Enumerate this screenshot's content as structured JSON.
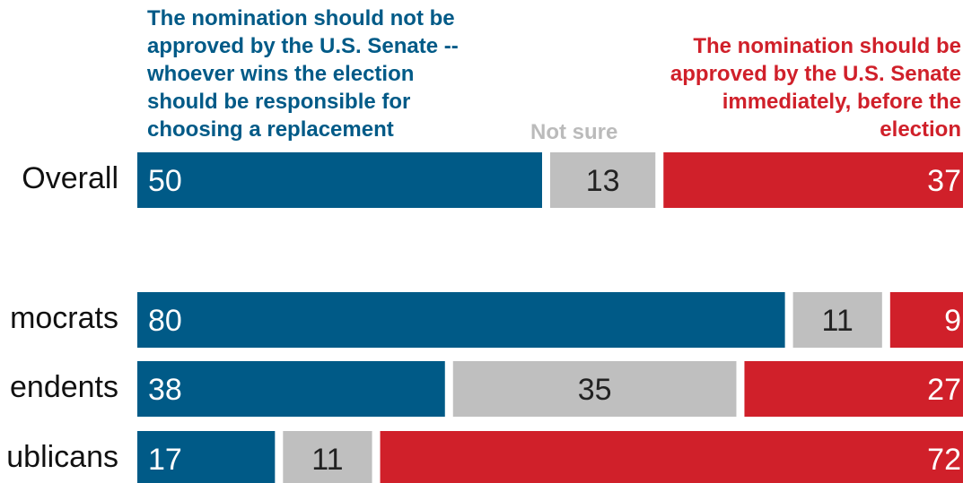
{
  "legend": {
    "no": "The nomination should not be\napproved by the U.S. Senate --\nwhoever wins the election\nshould be responsible for\nchoosing a replacement",
    "not_sure": "Not sure",
    "yes": "The nomination should be\napproved by the U.S. Senate\nimmediately, before the\nelection"
  },
  "colors": {
    "no": "#005a87",
    "not_sure": "#bfbfbf",
    "yes": "#d0202a"
  },
  "chart_data": {
    "type": "bar",
    "orientation": "horizontal",
    "stacked": true,
    "categories": [
      "Overall",
      "Democrats",
      "Independents",
      "Republicans"
    ],
    "visible_category_labels": [
      "Overall",
      "mocrats",
      "endents",
      "ublicans"
    ],
    "series": [
      {
        "name": "The nomination should not be approved by the U.S. Senate -- whoever wins the election should be responsible for choosing a replacement",
        "values": [
          50,
          80,
          38,
          17
        ]
      },
      {
        "name": "Not sure",
        "values": [
          13,
          11,
          35,
          11
        ]
      },
      {
        "name": "The nomination should be approved by the U.S. Senate immediately, before the election",
        "values": [
          37,
          9,
          27,
          72
        ]
      }
    ],
    "xlim": [
      0,
      100
    ]
  }
}
